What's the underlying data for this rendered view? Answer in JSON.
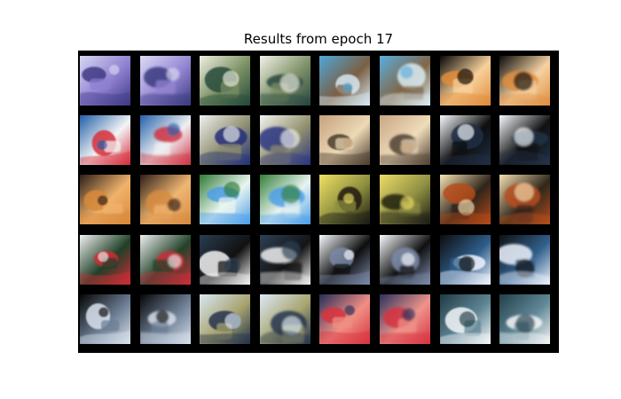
{
  "figure": {
    "title": "Results from epoch 17"
  },
  "image_grid": {
    "rows": 5,
    "columns": 8,
    "background": "#000000",
    "pair_layout": "original-reconstruction",
    "thumbnails": [
      {
        "content": "truck-purple-blue",
        "colors": [
          "#d7d7f2",
          "#3e3a84",
          "#8f80d0"
        ]
      },
      {
        "content": "truck-purple-blue",
        "colors": [
          "#dcdcf4",
          "#3b3a80",
          "#9385d3"
        ]
      },
      {
        "content": "frog-dark-green",
        "colors": [
          "#f0efe0",
          "#234a3b",
          "#7a8f63"
        ]
      },
      {
        "content": "frog-dark-green",
        "colors": [
          "#f2f2e6",
          "#28463f",
          "#7e9168"
        ]
      },
      {
        "content": "boat-sky",
        "colors": [
          "#4fa6d9",
          "#d7e8f2",
          "#7a5f43"
        ]
      },
      {
        "content": "boat-sky",
        "colors": [
          "#5aaedf",
          "#dbedf5",
          "#806648"
        ]
      },
      {
        "content": "cat-orange-dark",
        "colors": [
          "#080808",
          "#e08c3b",
          "#f7d09a"
        ]
      },
      {
        "content": "cat-orange-dark",
        "colors": [
          "#0b0b0b",
          "#df8d40",
          "#f5d2a2"
        ]
      },
      {
        "content": "red-car-blue",
        "colors": [
          "#1f5ea8",
          "#d62e3b",
          "#f4f4f5"
        ]
      },
      {
        "content": "red-car-blue",
        "colors": [
          "#2361ab",
          "#cf3443",
          "#efeff1"
        ]
      },
      {
        "content": "dump-truck",
        "colors": [
          "#f0f0f0",
          "#23307b",
          "#8f8f70"
        ]
      },
      {
        "content": "dump-truck",
        "colors": [
          "#f3f3f3",
          "#2a3580",
          "#94926f"
        ]
      },
      {
        "content": "bird-brown",
        "colors": [
          "#c5a27d",
          "#4b3c2f",
          "#ecd9b5"
        ]
      },
      {
        "content": "bird-brown",
        "colors": [
          "#c9a684",
          "#4f4134",
          "#efdcba"
        ]
      },
      {
        "content": "white-van",
        "colors": [
          "#f8fbff",
          "#1e2f45",
          "#0e0e0e"
        ]
      },
      {
        "content": "white-van",
        "colors": [
          "#f6faff",
          "#223249",
          "#111111"
        ]
      },
      {
        "content": "horse-brown",
        "colors": [
          "#2c1f18",
          "#d8883a",
          "#f0b26b"
        ]
      },
      {
        "content": "horse-brown",
        "colors": [
          "#2e2019",
          "#d68b40",
          "#efb672"
        ]
      },
      {
        "content": "bird-blue-green",
        "colors": [
          "#2f7b35",
          "#4c9ee8",
          "#e9f5f0"
        ]
      },
      {
        "content": "bird-blue-green",
        "colors": [
          "#33803a",
          "#4c9fe9",
          "#e8f4f0"
        ]
      },
      {
        "content": "frog-yellow-black",
        "colors": [
          "#f0df63",
          "#1d1b10",
          "#8d8f3f"
        ]
      },
      {
        "content": "frog-yellow-black",
        "colors": [
          "#eddb66",
          "#1d1d12",
          "#8e8f43"
        ]
      },
      {
        "content": "horse-orange",
        "colors": [
          "#f7e2b3",
          "#b64a18",
          "#2f251b"
        ]
      },
      {
        "content": "horse-orange",
        "colors": [
          "#f5dfb1",
          "#b64d1c",
          "#30261c"
        ]
      },
      {
        "content": "fire-truck",
        "colors": [
          "#f0f0f0",
          "#d02b36",
          "#204027"
        ]
      },
      {
        "content": "fire-truck",
        "colors": [
          "#efefef",
          "#cc2e39",
          "#22432a"
        ]
      },
      {
        "content": "round-bird-dark",
        "colors": [
          "#293d51",
          "#f2f2f2",
          "#111111"
        ]
      },
      {
        "content": "round-bird-dark",
        "colors": [
          "#2d4156",
          "#efefef",
          "#141414"
        ]
      },
      {
        "content": "truck-white",
        "colors": [
          "#f7fbff",
          "#7b8aa8",
          "#0d0d0d"
        ]
      },
      {
        "content": "truck-white",
        "colors": [
          "#f8fbff",
          "#7d8caa",
          "#101010"
        ]
      },
      {
        "content": "truck-dark-cabin",
        "colors": [
          "#0d0d0d",
          "#f0f4ff",
          "#2f5d8a"
        ]
      },
      {
        "content": "truck-dark-cabin",
        "colors": [
          "#101010",
          "#edf2fd",
          "#31608c"
        ]
      },
      {
        "content": "boat-grey",
        "colors": [
          "#050505",
          "#d9e2ed",
          "#6c7d93"
        ]
      },
      {
        "content": "boat-grey",
        "colors": [
          "#070707",
          "#d6dfeb",
          "#6e7f95"
        ]
      },
      {
        "content": "people-scene",
        "colors": [
          "#d9e7f3",
          "#24324c",
          "#a7a36f"
        ]
      },
      {
        "content": "people-scene",
        "colors": [
          "#dce9f5",
          "#273650",
          "#a8a570"
        ]
      },
      {
        "content": "red-animal",
        "colors": [
          "#262d58",
          "#d8323d",
          "#f08f84"
        ]
      },
      {
        "content": "red-animal",
        "colors": [
          "#2b325e",
          "#d63440",
          "#ef938a"
        ]
      },
      {
        "content": "boat-white-teal",
        "colors": [
          "#1f3b45",
          "#f5f7f8",
          "#5f8695"
        ]
      },
      {
        "content": "boat-white-teal",
        "colors": [
          "#223f49",
          "#f4f6f7",
          "#628998"
        ]
      }
    ]
  }
}
